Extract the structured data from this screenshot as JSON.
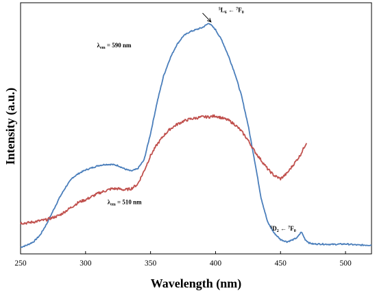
{
  "chart_data": {
    "type": "line",
    "xlabel": "Wavelength (nm)",
    "ylabel": "Intensity (a.u.)",
    "xlim": [
      250,
      520
    ],
    "xticks": [
      250,
      300,
      350,
      400,
      450,
      500
    ],
    "ylim": [
      0,
      1
    ],
    "yticks_shown": false,
    "grid": false,
    "series": [
      {
        "color": "#4a7ebb",
        "x": [
          250,
          255,
          260,
          265,
          270,
          275,
          280,
          285,
          290,
          295,
          300,
          305,
          310,
          315,
          320,
          325,
          330,
          335,
          340,
          345,
          350,
          355,
          360,
          365,
          370,
          375,
          380,
          385,
          390,
          395,
          400,
          405,
          410,
          415,
          420,
          425,
          430,
          435,
          440,
          445,
          450,
          455,
          460,
          463,
          466,
          469,
          472,
          475,
          480,
          490,
          500,
          510,
          520
        ],
        "y": [
          0.005,
          0.015,
          0.03,
          0.06,
          0.11,
          0.17,
          0.23,
          0.28,
          0.32,
          0.34,
          0.355,
          0.365,
          0.375,
          0.38,
          0.38,
          0.375,
          0.36,
          0.35,
          0.36,
          0.4,
          0.52,
          0.66,
          0.78,
          0.86,
          0.92,
          0.96,
          0.98,
          0.99,
          1.0,
          1.02,
          0.99,
          0.94,
          0.87,
          0.79,
          0.69,
          0.56,
          0.4,
          0.23,
          0.12,
          0.07,
          0.04,
          0.03,
          0.04,
          0.05,
          0.075,
          0.04,
          0.025,
          0.02,
          0.02,
          0.018,
          0.02,
          0.015,
          0.015
        ]
      },
      {
        "color": "#c0504d",
        "x": [
          250,
          255,
          260,
          265,
          270,
          275,
          280,
          285,
          290,
          295,
          300,
          305,
          310,
          315,
          320,
          325,
          330,
          335,
          340,
          345,
          350,
          355,
          360,
          365,
          370,
          375,
          380,
          385,
          390,
          395,
          400,
          405,
          410,
          415,
          420,
          425,
          430,
          435,
          440,
          445,
          450,
          455,
          460,
          465,
          470
        ],
        "y": [
          0.115,
          0.115,
          0.12,
          0.125,
          0.13,
          0.14,
          0.15,
          0.17,
          0.19,
          0.21,
          0.22,
          0.235,
          0.25,
          0.26,
          0.27,
          0.27,
          0.265,
          0.27,
          0.29,
          0.35,
          0.42,
          0.47,
          0.51,
          0.54,
          0.56,
          0.575,
          0.585,
          0.59,
          0.595,
          0.595,
          0.6,
          0.59,
          0.58,
          0.56,
          0.53,
          0.49,
          0.44,
          0.4,
          0.36,
          0.33,
          0.315,
          0.34,
          0.38,
          0.42,
          0.48
        ]
      }
    ],
    "annotations": [
      {
        "main": "λ",
        "sub": "em",
        "rest": " = 590 nm",
        "x": 322,
        "y": 0.91
      },
      {
        "main": "λ",
        "sub": "em",
        "rest": " = 510 nm",
        "x": 330,
        "y": 0.2
      },
      {
        "sup1": "5",
        "a": "L",
        "sub1": "6",
        "arrow": " ← ",
        "sup2": "7",
        "b": "F",
        "sub2": "0",
        "x": 412,
        "y": 1.07
      },
      {
        "sup1": "5",
        "a": "D",
        "sub1": "2",
        "arrow": " ← ",
        "sup2": "7",
        "b": "F",
        "sub2": "0",
        "x": 452,
        "y": 0.08
      }
    ]
  }
}
